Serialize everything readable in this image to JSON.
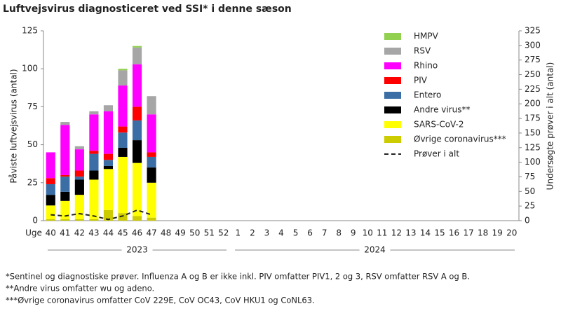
{
  "chart_data": {
    "type": "bar",
    "title": "Luftvejsvirus diagnosticeret ved SSI* i denne sæson",
    "y_label": "Påviste luftvejsvirus (antal)",
    "y2_label": "Undersøgte prøver i alt (antal)",
    "x_label": "Uge",
    "categories": [
      "40",
      "41",
      "42",
      "43",
      "44",
      "45",
      "46",
      "47",
      "48",
      "49",
      "50",
      "51",
      "52",
      "1",
      "2",
      "3",
      "4",
      "5",
      "6",
      "7",
      "8",
      "9",
      "10",
      "11",
      "12",
      "13",
      "14",
      "15",
      "16",
      "17",
      "18",
      "19",
      "20"
    ],
    "year_groups": [
      "2023",
      "2024"
    ],
    "stacked": true,
    "ylim": [
      0,
      125
    ],
    "yticks": [
      0,
      25,
      50,
      75,
      100,
      125
    ],
    "y2lim": [
      0,
      325
    ],
    "y2ticks": [
      0,
      25,
      50,
      75,
      100,
      125,
      150,
      175,
      200,
      225,
      250,
      275,
      300,
      325
    ],
    "series": [
      {
        "name": "HMPV",
        "color": "#92d050",
        "values": [
          0,
          0,
          0,
          0,
          0,
          1,
          1,
          0,
          null,
          null,
          null,
          null,
          null,
          null,
          null,
          null,
          null,
          null,
          null,
          null,
          null,
          null,
          null,
          null,
          null,
          null,
          null,
          null,
          null,
          null,
          null,
          null,
          null
        ]
      },
      {
        "name": "RSV",
        "color": "#a6a6a6",
        "values": [
          0,
          2,
          2,
          2,
          4,
          10,
          11,
          12,
          null,
          null,
          null,
          null,
          null,
          null,
          null,
          null,
          null,
          null,
          null,
          null,
          null,
          null,
          null,
          null,
          null,
          null,
          null,
          null,
          null,
          null,
          null,
          null,
          null
        ]
      },
      {
        "name": "Rhino",
        "color": "#ff00ff",
        "values": [
          17,
          33,
          14,
          24,
          28,
          27,
          28,
          25,
          null,
          null,
          null,
          null,
          null,
          null,
          null,
          null,
          null,
          null,
          null,
          null,
          null,
          null,
          null,
          null,
          null,
          null,
          null,
          null,
          null,
          null,
          null,
          null,
          null
        ]
      },
      {
        "name": "PIV",
        "color": "#ff0000",
        "values": [
          4,
          1,
          4,
          2,
          4,
          4,
          9,
          3,
          null,
          null,
          null,
          null,
          null,
          null,
          null,
          null,
          null,
          null,
          null,
          null,
          null,
          null,
          null,
          null,
          null,
          null,
          null,
          null,
          null,
          null,
          null,
          null,
          null
        ]
      },
      {
        "name": "Entero",
        "color": "#3a6ea5",
        "values": [
          7,
          10,
          2,
          11,
          4,
          10,
          13,
          7,
          null,
          null,
          null,
          null,
          null,
          null,
          null,
          null,
          null,
          null,
          null,
          null,
          null,
          null,
          null,
          null,
          null,
          null,
          null,
          null,
          null,
          null,
          null,
          null,
          null
        ]
      },
      {
        "name": "Andre virus**",
        "color": "#000000",
        "values": [
          7,
          6,
          10,
          6,
          2,
          6,
          15,
          10,
          null,
          null,
          null,
          null,
          null,
          null,
          null,
          null,
          null,
          null,
          null,
          null,
          null,
          null,
          null,
          null,
          null,
          null,
          null,
          null,
          null,
          null,
          null,
          null,
          null
        ]
      },
      {
        "name": "SARS-CoV-2",
        "color": "#ffff00",
        "values": [
          9,
          12,
          16,
          26,
          27,
          37,
          35,
          23,
          null,
          null,
          null,
          null,
          null,
          null,
          null,
          null,
          null,
          null,
          null,
          null,
          null,
          null,
          null,
          null,
          null,
          null,
          null,
          null,
          null,
          null,
          null,
          null,
          null
        ]
      },
      {
        "name": "Øvrige coronavirus***",
        "color": "#cccc00",
        "values": [
          1,
          1,
          1,
          1,
          7,
          5,
          3,
          2,
          null,
          null,
          null,
          null,
          null,
          null,
          null,
          null,
          null,
          null,
          null,
          null,
          null,
          null,
          null,
          null,
          null,
          null,
          null,
          null,
          null,
          null,
          null,
          null,
          null
        ]
      },
      {
        "name": "Prøver i alt",
        "color": "#222222",
        "type": "line",
        "dashed": true,
        "axis": "y2",
        "values": [
          10,
          8,
          12,
          8,
          2,
          8,
          18,
          10,
          null,
          null,
          null,
          null,
          null,
          null,
          null,
          null,
          null,
          null,
          null,
          null,
          null,
          null,
          null,
          null,
          null,
          null,
          null,
          null,
          null,
          null,
          null,
          null,
          null
        ]
      }
    ],
    "footnotes": [
      "*Sentinel og diagnostiske prøver. Influenza A og B er ikke inkl.  PIV omfatter PIV1, 2 og 3, RSV omfatter RSV A og B.",
      "**Andre virus omfatter wu og adeno.",
      "***Øvrige coronavirus omfatter CoV 229E, CoV OC43, CoV HKU1 og CoNL63."
    ]
  }
}
